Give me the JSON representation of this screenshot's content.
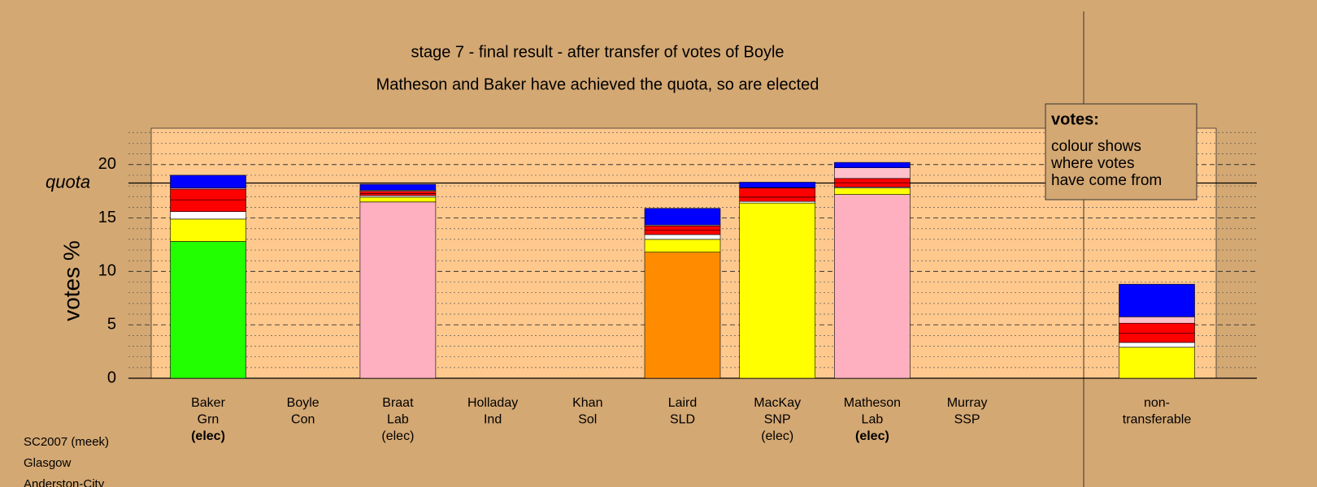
{
  "chart_data": {
    "type": "stacked-bar",
    "title": "stage 7 - final result - after transfer of votes of Boyle",
    "subtitle": "Matheson and Baker have achieved the quota, so are elected",
    "y_label": "votes %",
    "categories": [
      [
        "Baker",
        "Grn",
        "(elec)"
      ],
      [
        "Boyle",
        "Con"
      ],
      [
        "Braat",
        "Lab",
        "(elec)"
      ],
      [
        "Holladay",
        "Ind"
      ],
      [
        "Khan",
        "Sol"
      ],
      [
        "Laird",
        "SLD"
      ],
      [
        "MacKay",
        "SNP",
        "(elec)"
      ],
      [
        "Matheson",
        "Lab",
        "(elec)"
      ],
      [
        "Murray",
        "SSP"
      ],
      null,
      [
        "non-",
        "transferable"
      ]
    ],
    "bold_last_line": [
      true,
      false,
      false,
      false,
      false,
      false,
      false,
      true,
      false,
      false,
      false
    ],
    "series": [
      {
        "colors": [
          "#22ff00",
          null,
          "#ffb0c0",
          null,
          null,
          "#ff8c00",
          "#ffff00",
          "#ffb0c0",
          null,
          null,
          null
        ],
        "values": [
          12.8,
          0,
          16.5,
          0,
          0,
          11.8,
          16.4,
          17.2,
          0,
          null,
          0
        ]
      },
      {
        "color": "#ffff00",
        "values": [
          2.1,
          0,
          0.45,
          0,
          0,
          1.2,
          0,
          0.6,
          0,
          null,
          2.9
        ]
      },
      {
        "color": "#ffffff",
        "values": [
          0.7,
          0,
          0.15,
          0,
          0,
          0.45,
          0.15,
          0.1,
          0,
          null,
          0.45
        ]
      },
      {
        "color": "#ff0000",
        "values": [
          1.1,
          0,
          0.2,
          0,
          0,
          0.4,
          0.4,
          0.4,
          0,
          null,
          0.85
        ]
      },
      {
        "color": "#ff0000",
        "values": [
          1.0,
          0,
          0.2,
          0,
          0,
          0.4,
          0.85,
          0.4,
          0,
          null,
          0.95
        ]
      },
      {
        "color": "#ffc0cb",
        "values": [
          0.1,
          0,
          0.1,
          0,
          0,
          0.1,
          0.05,
          1.0,
          0,
          null,
          0.6
        ]
      },
      {
        "color": "#0000ff",
        "values": [
          1.2,
          0,
          0.55,
          0,
          0,
          1.55,
          0.5,
          0.5,
          0,
          null,
          3.05
        ]
      }
    ],
    "ylim": [
      0,
      23.4
    ],
    "yticks": [
      0,
      5,
      10,
      15,
      20
    ],
    "minor_yticks": [
      1,
      2,
      3,
      4,
      6,
      7,
      8,
      9,
      11,
      12,
      13,
      14,
      16,
      17,
      18,
      19,
      21,
      22,
      23
    ],
    "quota": {
      "label": "quota",
      "value": 18.27
    },
    "annotation": {
      "title": "votes:",
      "lines": [
        "colour shows",
        "where votes",
        "have come from"
      ]
    },
    "footer": [
      "SC2007 (meek)",
      "Glasgow",
      "Anderston-City"
    ]
  }
}
